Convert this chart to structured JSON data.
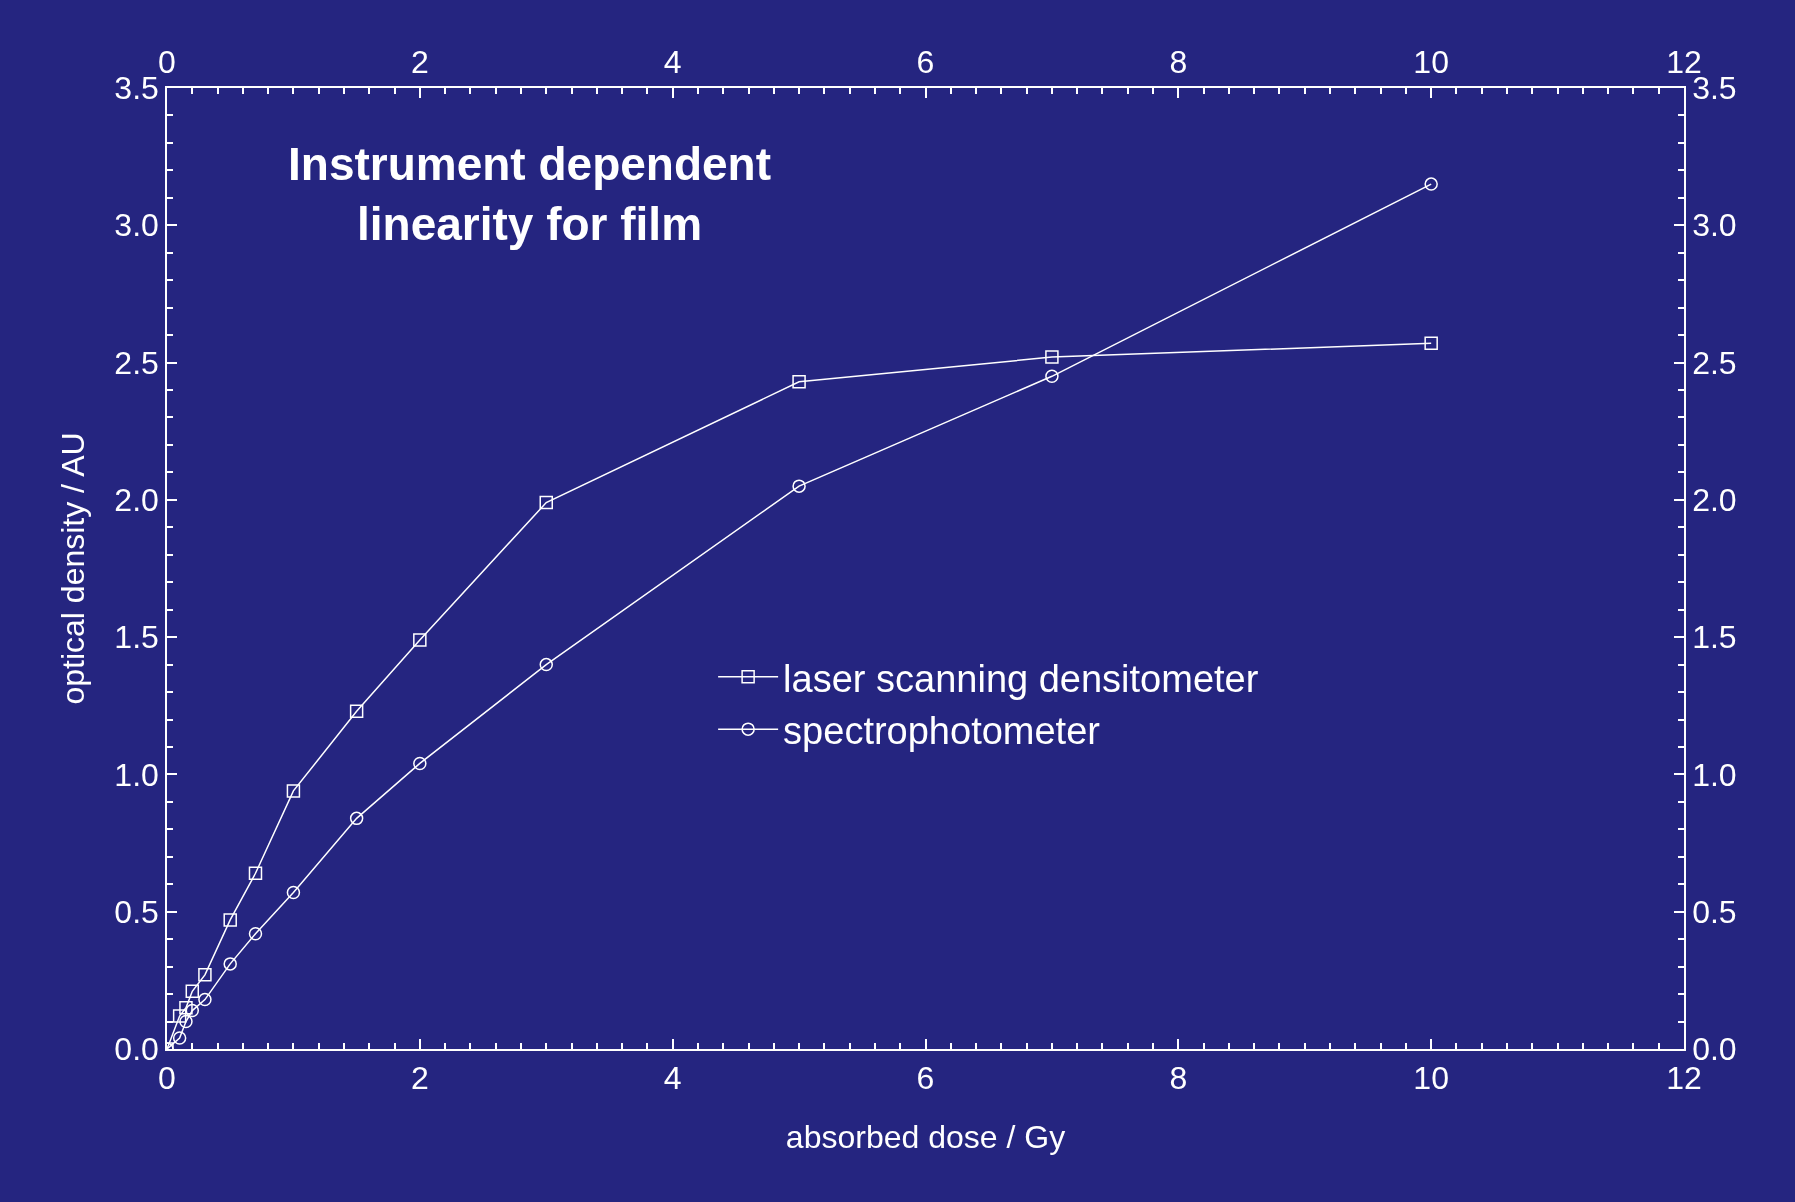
{
  "chart_data": {
    "type": "line",
    "title": "Instrument dependent\nlinearity for film",
    "xlabel": "absorbed dose / Gy",
    "ylabel": "optical density / AU",
    "xlim": [
      0,
      12
    ],
    "xticks": [
      0,
      2,
      4,
      6,
      8,
      10,
      12
    ],
    "x2lim": [
      0,
      12
    ],
    "x2ticks": [
      0,
      2,
      4,
      6,
      8,
      10,
      12
    ],
    "ylim": [
      0,
      3.5
    ],
    "yticks": [
      {
        "value": 0,
        "label": "0.0"
      },
      0.5,
      {
        "value": 1,
        "label": "1.0"
      },
      1.5,
      {
        "value": 2,
        "label": "2.0"
      },
      2.5,
      {
        "value": 3,
        "label": "3.0"
      },
      3.5
    ],
    "y2lim": [
      0,
      3.5
    ],
    "y2ticks": [
      {
        "value": 0,
        "label": "0.0"
      },
      0.5,
      {
        "value": 1,
        "label": "1.0"
      },
      1.5,
      {
        "value": 2,
        "label": "2.0"
      },
      2.5,
      {
        "value": 3,
        "label": "3.0"
      },
      3.5
    ],
    "x": [
      0,
      0.1,
      0.15,
      0.2,
      0.3,
      0.5,
      0.7,
      1,
      1.5,
      2,
      3,
      5,
      7,
      10
    ],
    "grid": false,
    "legend": "center",
    "line_style": "solid",
    "series": [
      {
        "name": "laser scanning densitometer",
        "color": "#ffffff",
        "marker": "square",
        "values": [
          0,
          0.12,
          0.15,
          0.21,
          0.27,
          0.47,
          0.64,
          0.94,
          1.23,
          1.49,
          1.99,
          2.43,
          2.52,
          2.57
        ]
      },
      {
        "name": "spectrophotometer",
        "color": "#ffffff",
        "marker": "circle",
        "values": [
          0,
          0.04,
          0.1,
          0.14,
          0.18,
          0.31,
          0.42,
          0.57,
          0.84,
          1.04,
          1.4,
          2.05,
          2.45,
          3.15
        ]
      }
    ]
  }
}
